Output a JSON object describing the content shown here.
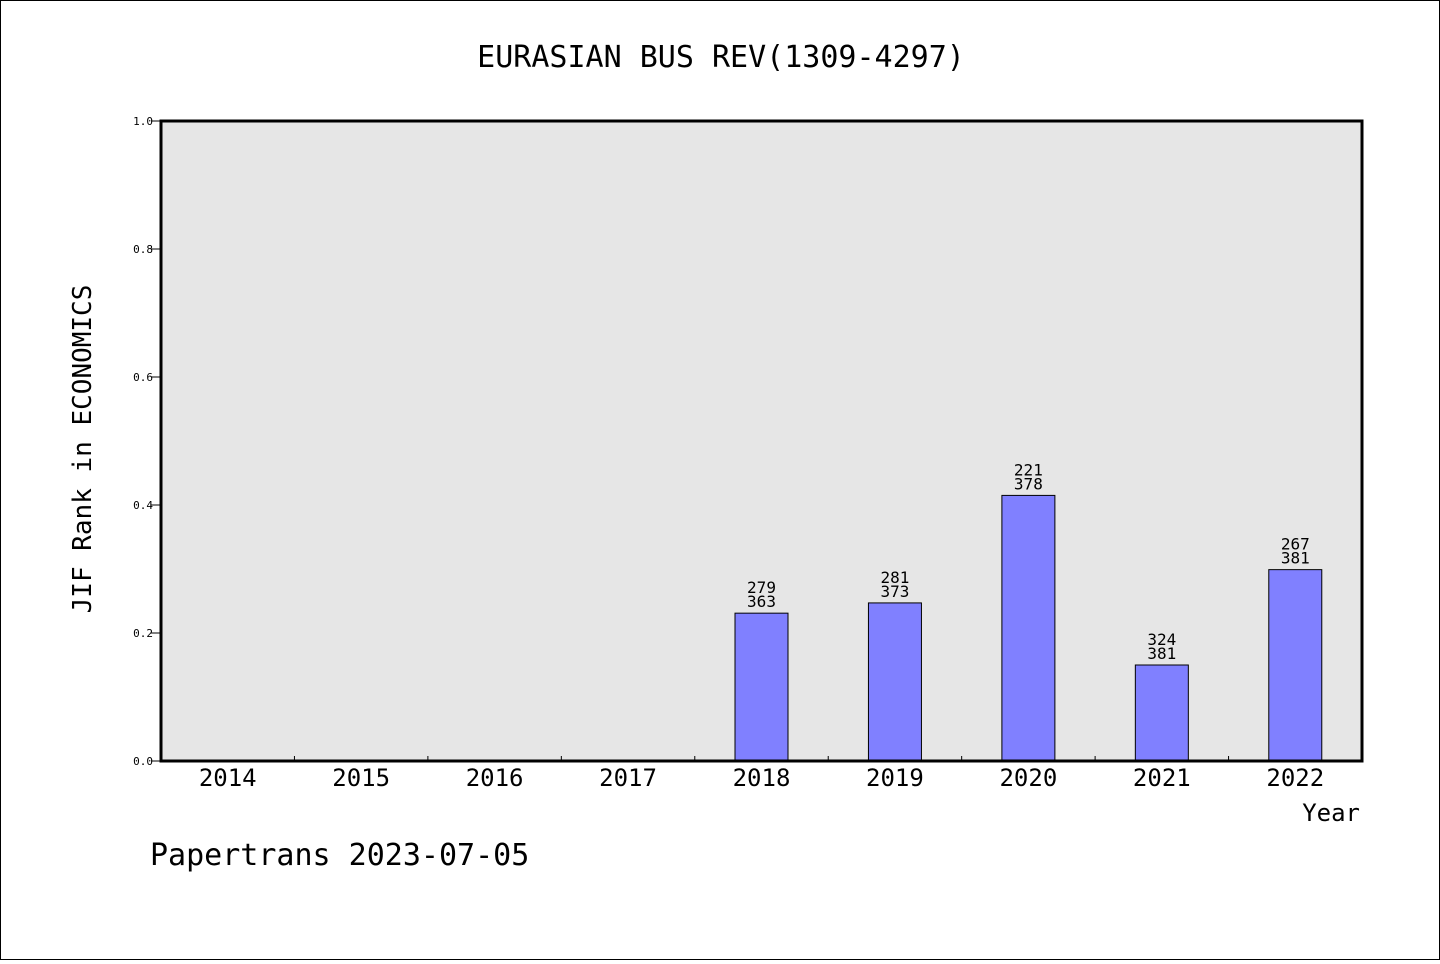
{
  "chart_data": {
    "type": "bar",
    "title": "EURASIAN BUS REV(1309-4297)",
    "xlabel": "Year",
    "ylabel": "JIF Rank in ECONOMICS",
    "ylim": [
      0,
      1.0
    ],
    "yticks": [
      "0.0",
      "0.2",
      "0.4",
      "0.6",
      "0.8",
      "1.0"
    ],
    "categories": [
      "2014",
      "2015",
      "2016",
      "2017",
      "2018",
      "2019",
      "2020",
      "2021",
      "2022"
    ],
    "series": [
      {
        "values": [
          null,
          null,
          null,
          null,
          0.231,
          0.247,
          0.415,
          0.15,
          0.299
        ],
        "rank": [
          null,
          null,
          null,
          null,
          "279",
          "281",
          "221",
          "324",
          "267"
        ],
        "total": [
          null,
          null,
          null,
          null,
          "363",
          "373",
          "378",
          "381",
          "381"
        ]
      }
    ],
    "bar_color": "#8080ff",
    "plot_bg": "#e6e6e6",
    "grid": false,
    "legend": "none"
  },
  "footer": "Papertrans 2023-07-05"
}
